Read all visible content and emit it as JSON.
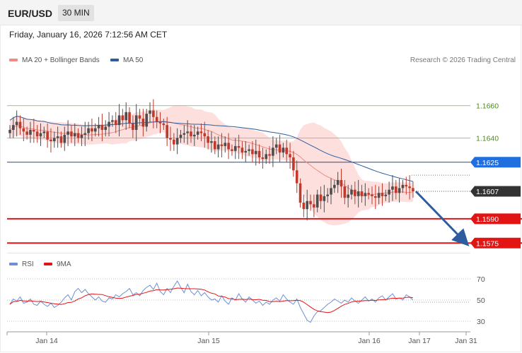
{
  "header": {
    "pair": "EUR/USD",
    "timeframe": "30 MIN"
  },
  "datetime": "Friday, January 16, 2026 7:12:56 AM CET",
  "legend": {
    "ma20_label": "MA 20 + Bollinger Bands",
    "ma50_label": "MA 50",
    "credit": "Research © 2026 Trading Central",
    "rsi_label": "RSI",
    "rsi_ma_label": "9MA"
  },
  "colors": {
    "up": "#4d4d4d",
    "down": "#c0392b",
    "bollinger_fill": "#fde0de",
    "ma20": "#f28a82",
    "ma50": "#2d5d9f",
    "resistance": "#9ecb6b",
    "pivot": "#1f4f8f",
    "support": "#e31414",
    "arrow": "#2d5d9f",
    "rsi": "#6c8fd8",
    "rsi_ma": "#e31414"
  },
  "chart_data": [
    {
      "type": "candlestick",
      "title": "EUR/USD",
      "timeframe": "30 MIN",
      "x_ticks": [
        "Jan 14",
        "Jan 15",
        "Jan 16",
        "Jan 17",
        "Jan 31"
      ],
      "ylim": [
        1.1569,
        1.1683
      ],
      "grid": false,
      "legend_placement": "top-left",
      "levels": [
        {
          "value": 1.166,
          "label": "1.1660",
          "kind": "resistance"
        },
        {
          "value": 1.164,
          "label": "1.1640",
          "kind": "resistance"
        },
        {
          "value": 1.1625,
          "label": "1.1625",
          "kind": "pivot"
        },
        {
          "value": 1.1607,
          "label": "1.1607",
          "kind": "last"
        },
        {
          "value": 1.159,
          "label": "1.1590",
          "kind": "support"
        },
        {
          "value": 1.1575,
          "label": "1.1575",
          "kind": "support"
        }
      ],
      "closes": [
        1.1645,
        1.1648,
        1.165,
        1.1646,
        1.1644,
        1.1642,
        1.1645,
        1.1644,
        1.1641,
        1.1643,
        1.1644,
        1.1639,
        1.1638,
        1.164,
        1.1641,
        1.1637,
        1.1642,
        1.1644,
        1.1641,
        1.1643,
        1.164,
        1.1642,
        1.1643,
        1.1646,
        1.1644,
        1.1646,
        1.1648,
        1.1645,
        1.1647,
        1.165,
        1.1651,
        1.1648,
        1.1654,
        1.1651,
        1.1656,
        1.1649,
        1.1645,
        1.1654,
        1.1652,
        1.1647,
        1.1655,
        1.1657,
        1.1653,
        1.165,
        1.1649,
        1.1648,
        1.164,
        1.1639,
        1.1636,
        1.164,
        1.1642,
        1.1643,
        1.1644,
        1.1641,
        1.1642,
        1.1644,
        1.1643,
        1.1641,
        1.1637,
        1.1638,
        1.1633,
        1.1636,
        1.1635,
        1.1637,
        1.1633,
        1.1632,
        1.1635,
        1.1634,
        1.1631,
        1.1632,
        1.1633,
        1.163,
        1.1632,
        1.1628,
        1.1627,
        1.163,
        1.1629,
        1.1634,
        1.1636,
        1.1631,
        1.1634,
        1.163,
        1.1628,
        1.162,
        1.1612,
        1.16,
        1.1596,
        1.1601,
        1.1599,
        1.1597,
        1.1605,
        1.1601,
        1.1604,
        1.1605,
        1.1609,
        1.1611,
        1.1614,
        1.161,
        1.1603,
        1.1605,
        1.1608,
        1.1604,
        1.1607,
        1.1604,
        1.1606,
        1.1605,
        1.1604,
        1.1603,
        1.1606,
        1.1604,
        1.1605,
        1.1608,
        1.161,
        1.1606,
        1.1609,
        1.1611,
        1.161,
        1.1609,
        1.1607
      ],
      "series": [
        {
          "name": "MA 20",
          "role": "ma20"
        },
        {
          "name": "MA 50",
          "role": "ma50"
        }
      ],
      "last": 1.1607,
      "projection": {
        "from": 1.1607,
        "to": 1.1575
      }
    },
    {
      "type": "line",
      "title": "RSI",
      "ylim": [
        22,
        78
      ],
      "y_ticks": [
        30,
        50,
        70
      ],
      "series": [
        {
          "name": "RSI",
          "role": "rsi",
          "values": [
            46,
            51,
            49,
            53,
            47,
            48,
            51,
            46,
            45,
            49,
            46,
            44,
            47,
            43,
            45,
            48,
            52,
            55,
            50,
            58,
            61,
            57,
            60,
            56,
            53,
            50,
            53,
            49,
            48,
            52,
            51,
            55,
            53,
            56,
            58,
            61,
            55,
            57,
            54,
            59,
            62,
            64,
            60,
            66,
            58,
            55,
            61,
            57,
            63,
            68,
            62,
            57,
            65,
            58,
            55,
            59,
            54,
            57,
            53,
            50,
            51,
            48,
            54,
            49,
            46,
            52,
            50,
            56,
            51,
            48,
            53,
            50,
            47,
            49,
            45,
            48,
            46,
            50,
            52,
            49,
            55,
            51,
            48,
            46,
            51,
            43,
            37,
            31,
            29,
            35,
            39,
            40,
            43,
            46,
            48,
            51,
            49,
            47,
            50,
            48,
            52,
            49,
            47,
            50,
            53,
            49,
            51,
            48,
            52,
            54,
            50,
            53,
            56,
            51,
            52,
            50,
            55,
            53,
            50
          ]
        },
        {
          "name": "9MA",
          "role": "rsi_ma"
        }
      ]
    }
  ]
}
